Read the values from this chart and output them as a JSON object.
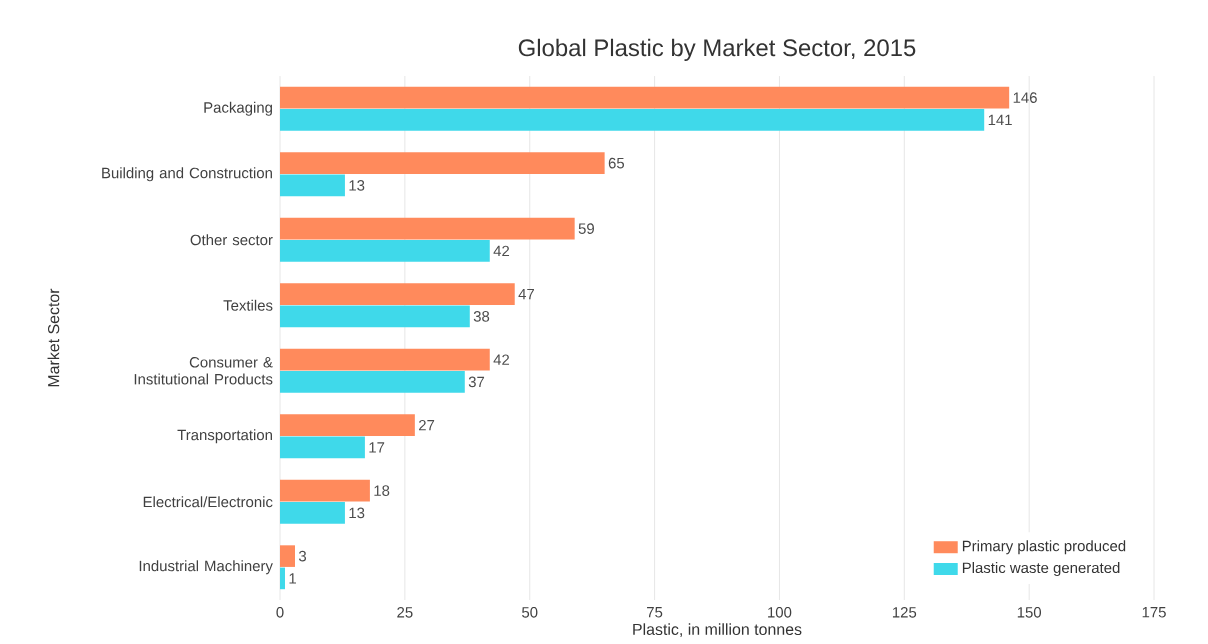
{
  "chart_data": {
    "type": "bar",
    "orientation": "horizontal",
    "title": "Global Plastic by Market Sector, 2015",
    "xlabel": "Plastic, in million tonnes",
    "ylabel": "Market Sector",
    "categories": [
      "Packaging",
      "Building and Construction",
      "Other sector",
      "Textiles",
      "Consumer & Institutional Products",
      "Transportation",
      "Electrical/Electronic",
      "Industrial Machinery"
    ],
    "series": [
      {
        "name": "Primary plastic produced",
        "color": "#ff8a5c",
        "values": [
          146,
          65,
          59,
          47,
          42,
          27,
          18,
          3
        ]
      },
      {
        "name": "Plastic waste generated",
        "color": "#3fd9ea",
        "values": [
          141,
          13,
          42,
          38,
          37,
          17,
          13,
          1
        ]
      }
    ],
    "xlim": [
      0,
      175
    ],
    "xticks": [
      0,
      25,
      50,
      75,
      100,
      125,
      150,
      175
    ],
    "grid": "x",
    "legend": "bottom right",
    "data_labels": true
  }
}
